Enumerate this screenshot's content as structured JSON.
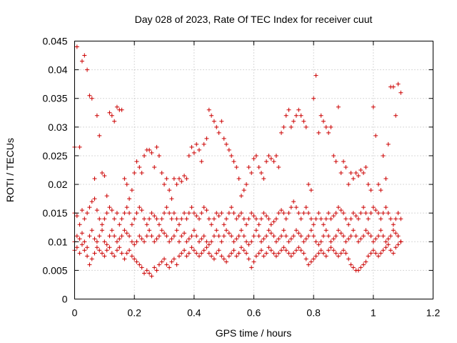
{
  "chart_data": {
    "type": "scatter",
    "title": "Day 028 of 2023, Rate Of TEC Index for receiver cuut",
    "xlabel": "GPS time / hours",
    "ylabel": "ROTI / TECUs",
    "xlim": [
      0,
      1.2
    ],
    "ylim": [
      0,
      0.045
    ],
    "x_ticks": [
      "0",
      "0.2",
      "0.4",
      "0.6",
      "0.8",
      "1",
      "1.2"
    ],
    "y_ticks": [
      "0",
      "0.005",
      "0.01",
      "0.015",
      "0.02",
      "0.025",
      "0.03",
      "0.035",
      "0.04",
      "0.045"
    ],
    "grid": true,
    "marker": "+",
    "color": "#cc0000",
    "series": [
      {
        "x": [
          0.0,
          0.008,
          0.017,
          0.025,
          0.033,
          0.042,
          0.05,
          0.058,
          0.067,
          0.075,
          0.083,
          0.092,
          0.1,
          0.108,
          0.117,
          0.125,
          0.133,
          0.142,
          0.15,
          0.158,
          0.167,
          0.175,
          0.183,
          0.192,
          0.2,
          0.208,
          0.217,
          0.225,
          0.233,
          0.242,
          0.25,
          0.258,
          0.267,
          0.275,
          0.283,
          0.292,
          0.3,
          0.308,
          0.317,
          0.325,
          0.333,
          0.342,
          0.35,
          0.358,
          0.367,
          0.375,
          0.383,
          0.392,
          0.4,
          0.408,
          0.417,
          0.425,
          0.433,
          0.442,
          0.45,
          0.458,
          0.467,
          0.475,
          0.483,
          0.492,
          0.5,
          0.508,
          0.517,
          0.525,
          0.533,
          0.542,
          0.55,
          0.558,
          0.567,
          0.575,
          0.583,
          0.592,
          0.6,
          0.608,
          0.617,
          0.625,
          0.633,
          0.642,
          0.65,
          0.658,
          0.667,
          0.675,
          0.683,
          0.692,
          0.7,
          0.708,
          0.717,
          0.725,
          0.733,
          0.742,
          0.75,
          0.758,
          0.767,
          0.775,
          0.783,
          0.792,
          0.8,
          0.808,
          0.817,
          0.825,
          0.833,
          0.842,
          0.85,
          0.858,
          0.867,
          0.875,
          0.883,
          0.892,
          0.9,
          0.908,
          0.917,
          0.925,
          0.933,
          0.942,
          0.95,
          0.958,
          0.967,
          0.975,
          0.983,
          0.992,
          1.0,
          1.008,
          1.017,
          1.025,
          1.033,
          1.042,
          1.05,
          1.058,
          1.067,
          1.075,
          1.083,
          1.092
        ],
        "y": [
          0.0265,
          0.044,
          0.0265,
          0.0415,
          0.0425,
          0.04,
          0.0355,
          0.035,
          0.021,
          0.032,
          0.0285,
          0.022,
          0.0215,
          0.018,
          0.0325,
          0.032,
          0.031,
          0.0335,
          0.033,
          0.033,
          0.021,
          0.02,
          0.0175,
          0.019,
          0.022,
          0.024,
          0.023,
          0.022,
          0.025,
          0.026,
          0.026,
          0.0255,
          0.023,
          0.0265,
          0.025,
          0.022,
          0.02,
          0.021,
          0.019,
          0.0175,
          0.021,
          0.02,
          0.021,
          0.0205,
          0.0215,
          0.021,
          0.025,
          0.0265,
          0.0255,
          0.027,
          0.026,
          0.024,
          0.027,
          0.028,
          0.033,
          0.032,
          0.031,
          0.03,
          0.029,
          0.031,
          0.028,
          0.027,
          0.026,
          0.025,
          0.024,
          0.023,
          0.021,
          0.018,
          0.019,
          0.02,
          0.023,
          0.022,
          0.0245,
          0.025,
          0.023,
          0.022,
          0.021,
          0.024,
          0.025,
          0.0245,
          0.024,
          0.025,
          0.023,
          0.029,
          0.03,
          0.032,
          0.033,
          0.03,
          0.031,
          0.032,
          0.033,
          0.032,
          0.031,
          0.03,
          0.02,
          0.019,
          0.035,
          0.039,
          0.029,
          0.032,
          0.031,
          0.03,
          0.029,
          0.03,
          0.025,
          0.024,
          0.0335,
          0.022,
          0.024,
          0.023,
          0.02,
          0.022,
          0.021,
          0.022,
          0.0215,
          0.0225,
          0.022,
          0.023,
          0.02,
          0.019,
          0.0335,
          0.0285,
          0.02,
          0.019,
          0.025,
          0.021,
          0.027,
          0.037,
          0.037,
          0.032,
          0.0375,
          0.036
        ]
      },
      {
        "x": [
          0.0,
          0.008,
          0.017,
          0.025,
          0.033,
          0.042,
          0.05,
          0.058,
          0.067,
          0.075,
          0.083,
          0.092,
          0.1,
          0.108,
          0.117,
          0.125,
          0.133,
          0.142,
          0.15,
          0.158,
          0.167,
          0.175,
          0.183,
          0.192,
          0.2,
          0.208,
          0.217,
          0.225,
          0.233,
          0.242,
          0.25,
          0.258,
          0.267,
          0.275,
          0.283,
          0.292,
          0.3,
          0.308,
          0.317,
          0.325,
          0.333,
          0.342,
          0.35,
          0.358,
          0.367,
          0.375,
          0.383,
          0.392,
          0.4,
          0.408,
          0.417,
          0.425,
          0.433,
          0.442,
          0.45,
          0.458,
          0.467,
          0.475,
          0.483,
          0.492,
          0.5,
          0.508,
          0.517,
          0.525,
          0.533,
          0.542,
          0.55,
          0.558,
          0.567,
          0.575,
          0.583,
          0.592,
          0.6,
          0.608,
          0.617,
          0.625,
          0.633,
          0.642,
          0.65,
          0.658,
          0.667,
          0.675,
          0.683,
          0.692,
          0.7,
          0.708,
          0.717,
          0.725,
          0.733,
          0.742,
          0.75,
          0.758,
          0.767,
          0.775,
          0.783,
          0.792,
          0.8,
          0.808,
          0.817,
          0.825,
          0.833,
          0.842,
          0.85,
          0.858,
          0.867,
          0.875,
          0.883,
          0.892,
          0.9,
          0.908,
          0.917,
          0.925,
          0.933,
          0.942,
          0.95,
          0.958,
          0.967,
          0.975,
          0.983,
          0.992,
          1.0,
          1.008,
          1.017,
          1.025,
          1.033,
          1.042,
          1.05,
          1.058,
          1.067,
          1.075,
          1.083,
          1.092
        ],
        "y": [
          0.015,
          0.0145,
          0.013,
          0.0155,
          0.014,
          0.015,
          0.016,
          0.017,
          0.0175,
          0.0155,
          0.014,
          0.013,
          0.014,
          0.015,
          0.016,
          0.0155,
          0.014,
          0.015,
          0.013,
          0.014,
          0.015,
          0.016,
          0.015,
          0.013,
          0.014,
          0.015,
          0.016,
          0.0155,
          0.014,
          0.013,
          0.014,
          0.015,
          0.0145,
          0.014,
          0.013,
          0.014,
          0.015,
          0.016,
          0.015,
          0.014,
          0.015,
          0.014,
          0.013,
          0.014,
          0.015,
          0.014,
          0.015,
          0.016,
          0.015,
          0.0145,
          0.014,
          0.015,
          0.016,
          0.0155,
          0.014,
          0.013,
          0.014,
          0.015,
          0.0145,
          0.015,
          0.013,
          0.014,
          0.015,
          0.016,
          0.015,
          0.014,
          0.0145,
          0.015,
          0.014,
          0.013,
          0.014,
          0.015,
          0.0145,
          0.014,
          0.013,
          0.014,
          0.015,
          0.0145,
          0.014,
          0.013,
          0.0135,
          0.014,
          0.015,
          0.0155,
          0.015,
          0.014,
          0.015,
          0.016,
          0.017,
          0.016,
          0.015,
          0.014,
          0.015,
          0.016,
          0.015,
          0.014,
          0.013,
          0.014,
          0.015,
          0.014,
          0.013,
          0.014,
          0.015,
          0.014,
          0.0145,
          0.015,
          0.016,
          0.0155,
          0.015,
          0.014,
          0.013,
          0.014,
          0.015,
          0.0145,
          0.014,
          0.015,
          0.016,
          0.015,
          0.014,
          0.015,
          0.016,
          0.0155,
          0.015,
          0.014,
          0.015,
          0.016,
          0.015,
          0.014,
          0.013,
          0.014,
          0.015,
          0.014
        ]
      },
      {
        "x": [
          0.0,
          0.008,
          0.017,
          0.025,
          0.033,
          0.042,
          0.05,
          0.058,
          0.067,
          0.075,
          0.083,
          0.092,
          0.1,
          0.108,
          0.117,
          0.125,
          0.133,
          0.142,
          0.15,
          0.158,
          0.167,
          0.175,
          0.183,
          0.192,
          0.2,
          0.208,
          0.217,
          0.225,
          0.233,
          0.242,
          0.25,
          0.258,
          0.267,
          0.275,
          0.283,
          0.292,
          0.3,
          0.308,
          0.317,
          0.325,
          0.333,
          0.342,
          0.35,
          0.358,
          0.367,
          0.375,
          0.383,
          0.392,
          0.4,
          0.408,
          0.417,
          0.425,
          0.433,
          0.442,
          0.45,
          0.458,
          0.467,
          0.475,
          0.483,
          0.492,
          0.5,
          0.508,
          0.517,
          0.525,
          0.533,
          0.542,
          0.55,
          0.558,
          0.567,
          0.575,
          0.583,
          0.592,
          0.6,
          0.608,
          0.617,
          0.625,
          0.633,
          0.642,
          0.65,
          0.658,
          0.667,
          0.675,
          0.683,
          0.692,
          0.7,
          0.708,
          0.717,
          0.725,
          0.733,
          0.742,
          0.75,
          0.758,
          0.767,
          0.775,
          0.783,
          0.792,
          0.8,
          0.808,
          0.817,
          0.825,
          0.833,
          0.842,
          0.85,
          0.858,
          0.867,
          0.875,
          0.883,
          0.892,
          0.9,
          0.908,
          0.917,
          0.925,
          0.933,
          0.942,
          0.95,
          0.958,
          0.967,
          0.975,
          0.983,
          0.992,
          1.0,
          1.008,
          1.017,
          1.025,
          1.033,
          1.042,
          1.05,
          1.058,
          1.067,
          1.075,
          1.083,
          1.092
        ],
        "y": [
          0.01,
          0.011,
          0.0105,
          0.0115,
          0.01,
          0.009,
          0.011,
          0.012,
          0.0105,
          0.01,
          0.011,
          0.012,
          0.01,
          0.0095,
          0.011,
          0.012,
          0.011,
          0.01,
          0.0105,
          0.011,
          0.012,
          0.0115,
          0.011,
          0.01,
          0.0095,
          0.01,
          0.011,
          0.0105,
          0.01,
          0.011,
          0.012,
          0.011,
          0.01,
          0.0105,
          0.011,
          0.012,
          0.0115,
          0.011,
          0.01,
          0.0105,
          0.011,
          0.012,
          0.01,
          0.011,
          0.0115,
          0.01,
          0.0105,
          0.011,
          0.012,
          0.011,
          0.01,
          0.0105,
          0.011,
          0.01,
          0.0095,
          0.01,
          0.011,
          0.012,
          0.011,
          0.01,
          0.011,
          0.012,
          0.0115,
          0.011,
          0.01,
          0.0105,
          0.011,
          0.012,
          0.011,
          0.01,
          0.0095,
          0.01,
          0.011,
          0.012,
          0.011,
          0.01,
          0.0105,
          0.011,
          0.012,
          0.0115,
          0.011,
          0.01,
          0.0105,
          0.011,
          0.012,
          0.011,
          0.01,
          0.0105,
          0.011,
          0.012,
          0.0115,
          0.011,
          0.01,
          0.0105,
          0.011,
          0.012,
          0.011,
          0.01,
          0.0095,
          0.01,
          0.011,
          0.012,
          0.011,
          0.01,
          0.0105,
          0.011,
          0.012,
          0.0115,
          0.011,
          0.01,
          0.0105,
          0.011,
          0.012,
          0.011,
          0.01,
          0.0105,
          0.011,
          0.012,
          0.0115,
          0.011,
          0.01,
          0.0105,
          0.011,
          0.012,
          0.011,
          0.01,
          0.0105,
          0.011,
          0.012,
          0.0115,
          0.011,
          0.01
        ]
      },
      {
        "x": [
          0.0,
          0.008,
          0.017,
          0.025,
          0.033,
          0.042,
          0.05,
          0.058,
          0.067,
          0.075,
          0.083,
          0.092,
          0.1,
          0.108,
          0.117,
          0.125,
          0.133,
          0.142,
          0.15,
          0.158,
          0.167,
          0.175,
          0.183,
          0.192,
          0.2,
          0.208,
          0.217,
          0.225,
          0.233,
          0.242,
          0.25,
          0.258,
          0.267,
          0.275,
          0.283,
          0.292,
          0.3,
          0.308,
          0.317,
          0.325,
          0.333,
          0.342,
          0.35,
          0.358,
          0.367,
          0.375,
          0.383,
          0.392,
          0.4,
          0.408,
          0.417,
          0.425,
          0.433,
          0.442,
          0.45,
          0.458,
          0.467,
          0.475,
          0.483,
          0.492,
          0.5,
          0.508,
          0.517,
          0.525,
          0.533,
          0.542,
          0.55,
          0.558,
          0.567,
          0.575,
          0.583,
          0.592,
          0.6,
          0.608,
          0.617,
          0.625,
          0.633,
          0.642,
          0.65,
          0.658,
          0.667,
          0.675,
          0.683,
          0.692,
          0.7,
          0.708,
          0.717,
          0.725,
          0.733,
          0.742,
          0.75,
          0.758,
          0.767,
          0.775,
          0.783,
          0.792,
          0.8,
          0.808,
          0.817,
          0.825,
          0.833,
          0.842,
          0.85,
          0.858,
          0.867,
          0.875,
          0.883,
          0.892,
          0.9,
          0.908,
          0.917,
          0.925,
          0.933,
          0.942,
          0.95,
          0.958,
          0.967,
          0.975,
          0.983,
          0.992,
          1.0,
          1.008,
          1.017,
          1.025,
          1.033,
          1.042,
          1.05,
          1.058,
          1.067,
          1.075,
          1.083,
          1.092
        ],
        "y": [
          0.0085,
          0.009,
          0.008,
          0.0095,
          0.0085,
          0.0075,
          0.006,
          0.007,
          0.008,
          0.009,
          0.0085,
          0.008,
          0.0075,
          0.0085,
          0.009,
          0.008,
          0.0075,
          0.0085,
          0.009,
          0.008,
          0.007,
          0.008,
          0.0085,
          0.0075,
          0.007,
          0.0065,
          0.006,
          0.0055,
          0.0045,
          0.005,
          0.0045,
          0.004,
          0.0055,
          0.005,
          0.006,
          0.0065,
          0.007,
          0.006,
          0.0055,
          0.0065,
          0.007,
          0.006,
          0.0075,
          0.008,
          0.0085,
          0.0075,
          0.008,
          0.009,
          0.0085,
          0.008,
          0.0075,
          0.008,
          0.0085,
          0.009,
          0.008,
          0.0075,
          0.007,
          0.008,
          0.0085,
          0.0075,
          0.007,
          0.0065,
          0.0075,
          0.008,
          0.0085,
          0.0075,
          0.008,
          0.009,
          0.0085,
          0.008,
          0.007,
          0.0055,
          0.0065,
          0.0075,
          0.008,
          0.0085,
          0.0075,
          0.008,
          0.009,
          0.0085,
          0.008,
          0.0075,
          0.008,
          0.0085,
          0.009,
          0.0085,
          0.008,
          0.0075,
          0.008,
          0.0085,
          0.009,
          0.0085,
          0.008,
          0.007,
          0.006,
          0.0065,
          0.007,
          0.0075,
          0.008,
          0.0085,
          0.008,
          0.0075,
          0.0085,
          0.009,
          0.0085,
          0.008,
          0.0075,
          0.008,
          0.0085,
          0.008,
          0.007,
          0.006,
          0.0055,
          0.005,
          0.005,
          0.0055,
          0.006,
          0.0065,
          0.0075,
          0.008,
          0.0085,
          0.008,
          0.0075,
          0.008,
          0.0085,
          0.009,
          0.0095,
          0.0085,
          0.008,
          0.009,
          0.0095,
          0.01
        ]
      }
    ]
  }
}
